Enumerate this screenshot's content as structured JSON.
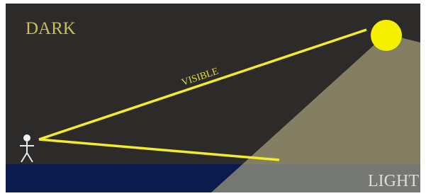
{
  "labels": {
    "dark": "DARK",
    "visible": "VISIBLE",
    "light": "LIGHT"
  }
}
